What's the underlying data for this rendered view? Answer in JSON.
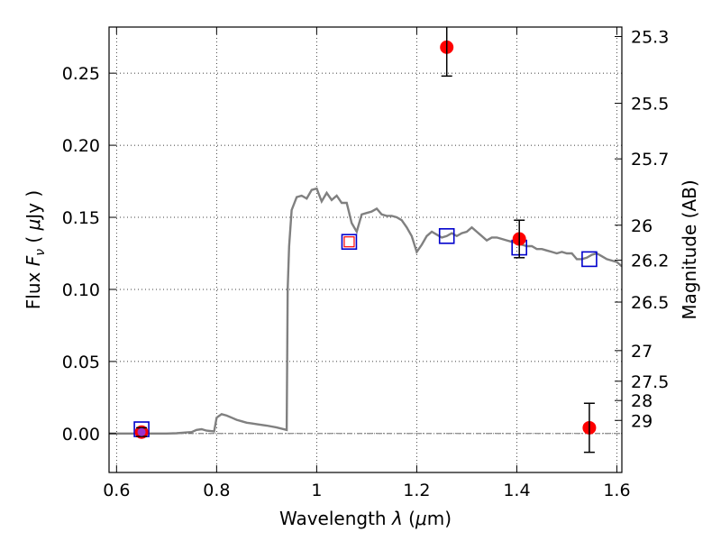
{
  "chart_data": {
    "type": "scatter",
    "xlabel": "Wavelength  λ (μm)",
    "ylabel": "Flux  F_ν ( μJy )",
    "ylabel_parts": {
      "pre": "Flux  ",
      "var": "F",
      "sub": "ν",
      "mid": "  (  ",
      "mu": "μ",
      "post": "Jy )"
    },
    "xlabel_parts": {
      "pre": "Wavelength  ",
      "lam": "λ",
      "post": " (",
      "mu": "μ",
      "unit": "m)"
    },
    "y2label": "Magnitude (AB)",
    "xlim": [
      0.585,
      1.61
    ],
    "ylim": [
      -0.027,
      0.282
    ],
    "grid": true,
    "x_ticks": [
      {
        "v": 0.6,
        "label": "0.6"
      },
      {
        "v": 0.8,
        "label": "0.8"
      },
      {
        "v": 1.0,
        "label": "1"
      },
      {
        "v": 1.2,
        "label": "1.2"
      },
      {
        "v": 1.4,
        "label": "1.4"
      },
      {
        "v": 1.6,
        "label": "1.6"
      }
    ],
    "y_ticks": [
      {
        "v": 0.0,
        "label": "0.00"
      },
      {
        "v": 0.05,
        "label": "0.05"
      },
      {
        "v": 0.1,
        "label": "0.10"
      },
      {
        "v": 0.15,
        "label": "0.15"
      },
      {
        "v": 0.2,
        "label": "0.20"
      },
      {
        "v": 0.25,
        "label": "0.25"
      }
    ],
    "mag_ticks": [
      {
        "m": 25.3,
        "label": "25.3"
      },
      {
        "m": 25.5,
        "label": "25.5"
      },
      {
        "m": 25.7,
        "label": "25.7"
      },
      {
        "m": 26,
        "label": "26"
      },
      {
        "m": 26.2,
        "label": "26.2"
      },
      {
        "m": 26.5,
        "label": "26.5"
      },
      {
        "m": 27,
        "label": "27"
      },
      {
        "m": 27.5,
        "label": "27.5"
      },
      {
        "m": 28,
        "label": "28"
      },
      {
        "m": 29,
        "label": "29"
      }
    ],
    "model_spectrum": {
      "color": "#808080",
      "x": [
        0.585,
        0.7,
        0.72,
        0.74,
        0.75,
        0.76,
        0.77,
        0.78,
        0.795,
        0.8,
        0.81,
        0.82,
        0.83,
        0.84,
        0.85,
        0.86,
        0.87,
        0.88,
        0.9,
        0.92,
        0.94,
        0.942,
        0.945,
        0.95,
        0.96,
        0.97,
        0.98,
        0.99,
        1.0,
        1.01,
        1.02,
        1.03,
        1.04,
        1.05,
        1.06,
        1.07,
        1.08,
        1.09,
        1.1,
        1.11,
        1.12,
        1.13,
        1.14,
        1.15,
        1.16,
        1.17,
        1.18,
        1.19,
        1.2,
        1.21,
        1.22,
        1.23,
        1.24,
        1.25,
        1.26,
        1.27,
        1.28,
        1.29,
        1.3,
        1.31,
        1.32,
        1.33,
        1.34,
        1.35,
        1.36,
        1.37,
        1.38,
        1.39,
        1.4,
        1.41,
        1.42,
        1.43,
        1.44,
        1.45,
        1.46,
        1.47,
        1.48,
        1.49,
        1.5,
        1.51,
        1.52,
        1.53,
        1.54,
        1.55,
        1.56,
        1.57,
        1.58,
        1.59,
        1.6,
        1.61
      ],
      "y": [
        0.0,
        0.0,
        0.0002,
        0.0008,
        0.001,
        0.0025,
        0.003,
        0.002,
        0.0015,
        0.011,
        0.0135,
        0.0125,
        0.011,
        0.0095,
        0.0085,
        0.0075,
        0.007,
        0.0065,
        0.0055,
        0.0042,
        0.0025,
        0.1,
        0.13,
        0.155,
        0.164,
        0.165,
        0.163,
        0.169,
        0.17,
        0.161,
        0.167,
        0.162,
        0.165,
        0.16,
        0.16,
        0.146,
        0.14,
        0.152,
        0.153,
        0.154,
        0.156,
        0.152,
        0.151,
        0.151,
        0.15,
        0.148,
        0.143,
        0.137,
        0.126,
        0.131,
        0.137,
        0.14,
        0.138,
        0.136,
        0.137,
        0.139,
        0.137,
        0.139,
        0.14,
        0.143,
        0.14,
        0.137,
        0.134,
        0.136,
        0.136,
        0.135,
        0.134,
        0.133,
        0.132,
        0.131,
        0.13,
        0.13,
        0.128,
        0.128,
        0.127,
        0.126,
        0.125,
        0.126,
        0.125,
        0.125,
        0.121,
        0.121,
        0.122,
        0.124,
        0.125,
        0.123,
        0.121,
        0.12,
        0.119,
        0.116
      ]
    },
    "model_photometry": {
      "color": "#0000cc",
      "shape": "open-square",
      "x": [
        0.65,
        1.065,
        1.26,
        1.405,
        1.545
      ],
      "y": [
        0.003,
        0.133,
        0.137,
        0.129,
        0.121
      ]
    },
    "observed": {
      "color": "#ff0000",
      "shape": "filled-circle",
      "x": [
        0.65,
        1.26,
        1.405,
        1.545
      ],
      "y": [
        0.001,
        0.268,
        0.135,
        0.004
      ],
      "yerr": [
        0.003,
        0.02,
        0.013,
        0.017
      ]
    },
    "upper_limits": {
      "color": "#ff0000",
      "shape": "open-square",
      "x": [
        1.065
      ],
      "y": [
        0.133
      ]
    },
    "inner_marker": {
      "color": "#9933cc",
      "x": [
        0.65
      ],
      "y": [
        0.001
      ]
    },
    "zero_line": {
      "y": 0.0,
      "style": "dash-dot"
    }
  }
}
